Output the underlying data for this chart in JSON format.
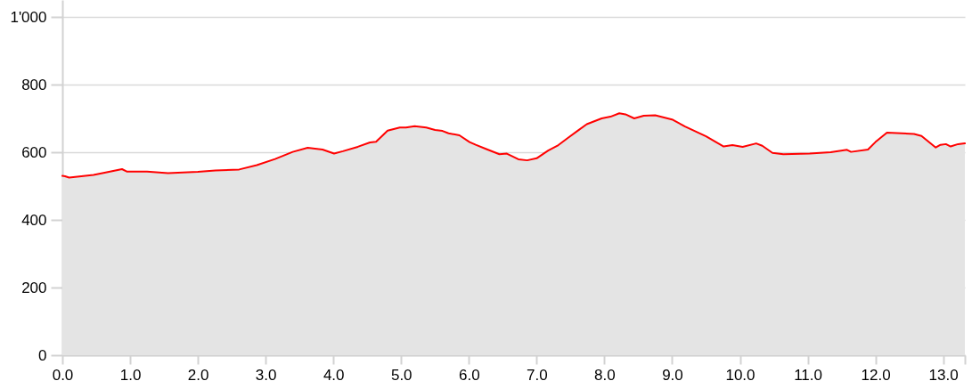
{
  "chart_data": {
    "type": "area",
    "x": [
      0,
      0.04,
      0.1,
      0.46,
      0.64,
      0.88,
      0.95,
      1.25,
      1.56,
      2.0,
      2.26,
      2.61,
      2.87,
      3.14,
      3.4,
      3.62,
      3.84,
      4.01,
      4.14,
      4.36,
      4.54,
      4.63,
      4.8,
      4.98,
      5.07,
      5.2,
      5.37,
      5.5,
      5.61,
      5.7,
      5.86,
      6.01,
      6.1,
      6.25,
      6.45,
      6.56,
      6.73,
      6.86,
      7.0,
      7.17,
      7.32,
      7.46,
      7.61,
      7.74,
      7.96,
      8.09,
      8.22,
      8.31,
      8.44,
      8.58,
      8.75,
      9.01,
      9.19,
      9.5,
      9.76,
      9.89,
      10.04,
      10.24,
      10.33,
      10.48,
      10.64,
      11.03,
      11.34,
      11.58,
      11.64,
      11.89,
      12.0,
      12.17,
      12.57,
      12.68,
      12.89,
      12.96,
      13.04,
      13.11,
      13.22,
      13.32
    ],
    "series": [
      {
        "color": "#e4e4e4",
        "values": [
          530,
          529,
          525,
          533,
          540,
          550,
          543,
          543,
          538,
          542,
          546,
          549,
          562,
          580,
          601,
          613,
          608,
          596,
          603,
          616,
          629,
          631,
          664,
          673,
          673,
          677,
          673,
          666,
          663,
          656,
          650,
          630,
          622,
          610,
          594,
          596,
          579,
          576,
          582,
          605,
          621,
          642,
          664,
          683,
          700,
          705,
          715,
          712,
          700,
          708,
          709,
          696,
          676,
          647,
          617,
          621,
          616,
          626,
          619,
          598,
          594,
          596,
          600,
          607,
          601,
          608,
          630,
          658,
          654,
          648,
          614,
          622,
          624,
          617,
          624,
          626
        ]
      }
    ],
    "xlim": [
      0,
      13.32
    ],
    "xticks": [
      {
        "value": 0,
        "label": "0.0"
      },
      {
        "value": 1,
        "label": "1.0"
      },
      {
        "value": 2,
        "label": "2.0"
      },
      {
        "value": 3,
        "label": "3.0"
      },
      {
        "value": 4,
        "label": "4.0"
      },
      {
        "value": 5,
        "label": "5.0"
      },
      {
        "value": 6,
        "label": "6.0"
      },
      {
        "value": 7,
        "label": "7.0"
      },
      {
        "value": 8,
        "label": "8.0"
      },
      {
        "value": 9,
        "label": "9.0"
      },
      {
        "value": 10,
        "label": "10.0"
      },
      {
        "value": 11,
        "label": "11.0"
      },
      {
        "value": 12,
        "label": "12.0"
      },
      {
        "value": 13,
        "label": "13.0"
      },
      {
        "value": 13.32,
        "label": null
      }
    ],
    "ylim": [
      0,
      1050
    ],
    "yticks": [
      0,
      200,
      400,
      600,
      800,
      {
        "value": 1000,
        "label": "1'000"
      }
    ],
    "grid": "y"
  }
}
